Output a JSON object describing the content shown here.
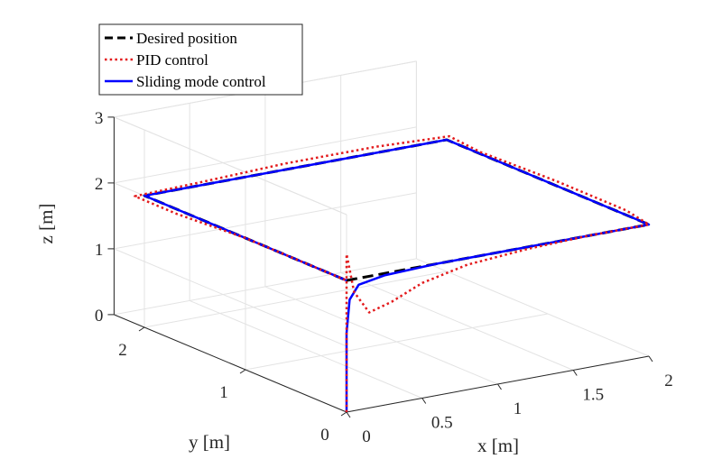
{
  "chart_data": {
    "type": "line",
    "view": "3d",
    "xlabel": "x [m]",
    "ylabel": "y [m]",
    "zlabel": "z [m]",
    "xlim": [
      0,
      2
    ],
    "ylim": [
      0,
      2.3
    ],
    "zlim": [
      0,
      3
    ],
    "xticks": [
      "0",
      "0.5",
      "1",
      "1.5",
      "2"
    ],
    "yticks": [
      "0",
      "1",
      "2"
    ],
    "zticks": [
      "0",
      "1",
      "2",
      "3"
    ],
    "grid": true,
    "legend_position": "top-left",
    "series": [
      {
        "name": "Desired position",
        "color": "#000000",
        "style": "dashed",
        "points": [
          [
            0,
            0,
            2
          ],
          [
            2,
            0,
            2
          ],
          [
            2,
            2,
            2
          ],
          [
            0,
            2,
            2
          ],
          [
            0,
            0,
            2
          ]
        ]
      },
      {
        "name": "PID control",
        "color": "#e31a1c",
        "style": "dotted",
        "points": [
          [
            0,
            0,
            0
          ],
          [
            0,
            0,
            0.6
          ],
          [
            0,
            0,
            1.3
          ],
          [
            0,
            0,
            1.9
          ],
          [
            0,
            0,
            2.4
          ],
          [
            0.05,
            0,
            1.8
          ],
          [
            0.15,
            0,
            1.45
          ],
          [
            0.3,
            0,
            1.55
          ],
          [
            0.5,
            0,
            1.75
          ],
          [
            0.8,
            0,
            1.9
          ],
          [
            1.2,
            0,
            1.97
          ],
          [
            1.6,
            0,
            2
          ],
          [
            2,
            0,
            2
          ],
          [
            2.05,
            0.3,
            2
          ],
          [
            2.05,
            1,
            2
          ],
          [
            2.02,
            1.7,
            2
          ],
          [
            2.05,
            2.05,
            2
          ],
          [
            1.6,
            2.1,
            2
          ],
          [
            1,
            2.1,
            2
          ],
          [
            0.4,
            2.05,
            2
          ],
          [
            -0.05,
            2.02,
            2
          ],
          [
            -0.05,
            1.6,
            2
          ],
          [
            0,
            1,
            2
          ],
          [
            0,
            0.4,
            2
          ],
          [
            0,
            0,
            2
          ]
        ]
      },
      {
        "name": "Sliding mode control",
        "color": "#0000ff",
        "style": "solid",
        "points": [
          [
            0,
            0,
            0
          ],
          [
            0,
            0,
            0.6
          ],
          [
            0,
            0,
            1.2
          ],
          [
            0.02,
            0,
            1.7
          ],
          [
            0.08,
            0,
            1.9
          ],
          [
            0.25,
            0,
            1.97
          ],
          [
            0.6,
            0,
            2
          ],
          [
            1,
            0,
            2
          ],
          [
            1.5,
            0,
            2
          ],
          [
            2,
            0,
            2
          ],
          [
            2,
            0.5,
            2
          ],
          [
            2,
            1,
            2
          ],
          [
            2,
            1.5,
            2
          ],
          [
            2,
            2,
            2
          ],
          [
            1.5,
            2,
            2
          ],
          [
            1,
            2,
            2
          ],
          [
            0.5,
            2,
            2
          ],
          [
            0,
            2,
            2
          ],
          [
            0,
            1.5,
            2
          ],
          [
            0,
            1,
            2
          ],
          [
            0,
            0.5,
            2
          ],
          [
            0,
            0,
            2
          ]
        ]
      }
    ]
  }
}
